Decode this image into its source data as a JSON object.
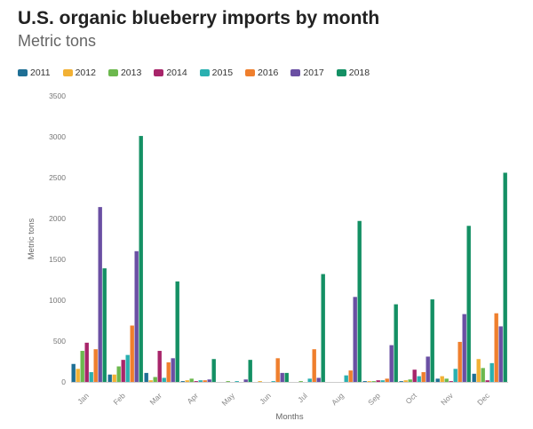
{
  "chart_data": {
    "type": "bar",
    "title": "U.S. organic blueberry imports by month",
    "subtitle": "Metric tons",
    "xlabel": "Months",
    "ylabel": "Metric tons",
    "ylim": [
      0,
      3500
    ],
    "yticks": [
      0,
      500,
      1000,
      1500,
      2000,
      2500,
      3000,
      3500
    ],
    "categories": [
      "Jan",
      "Feb",
      "Mar",
      "Apr",
      "May",
      "Jun",
      "Jul",
      "Aug",
      "Sep",
      "Oct",
      "Nov",
      "Dec"
    ],
    "legend_position": "top-left",
    "grid": false,
    "series": [
      {
        "name": "2011",
        "color": "#1f6f95",
        "values": [
          220,
          90,
          110,
          10,
          0,
          0,
          0,
          0,
          10,
          10,
          40,
          100
        ]
      },
      {
        "name": "2012",
        "color": "#f2b134",
        "values": [
          160,
          90,
          20,
          20,
          0,
          10,
          0,
          0,
          10,
          20,
          70,
          280
        ]
      },
      {
        "name": "2013",
        "color": "#6cb84e",
        "values": [
          380,
          190,
          60,
          40,
          10,
          0,
          10,
          0,
          10,
          30,
          40,
          170
        ]
      },
      {
        "name": "2014",
        "color": "#a8256a",
        "values": [
          480,
          270,
          380,
          10,
          0,
          0,
          0,
          0,
          20,
          150,
          10,
          20
        ]
      },
      {
        "name": "2015",
        "color": "#2ab0b0",
        "values": [
          120,
          330,
          50,
          20,
          10,
          10,
          40,
          80,
          20,
          70,
          160,
          230
        ]
      },
      {
        "name": "2016",
        "color": "#ef7f2d",
        "values": [
          400,
          690,
          240,
          20,
          0,
          290,
          400,
          140,
          40,
          120,
          490,
          840
        ]
      },
      {
        "name": "2017",
        "color": "#6a4fa3",
        "values": [
          2140,
          1600,
          290,
          30,
          30,
          110,
          50,
          1040,
          450,
          310,
          830,
          680
        ]
      },
      {
        "name": "2018",
        "color": "#149064",
        "values": [
          1390,
          3010,
          1230,
          280,
          270,
          110,
          1320,
          1970,
          950,
          1010,
          1910,
          2560
        ]
      }
    ]
  }
}
